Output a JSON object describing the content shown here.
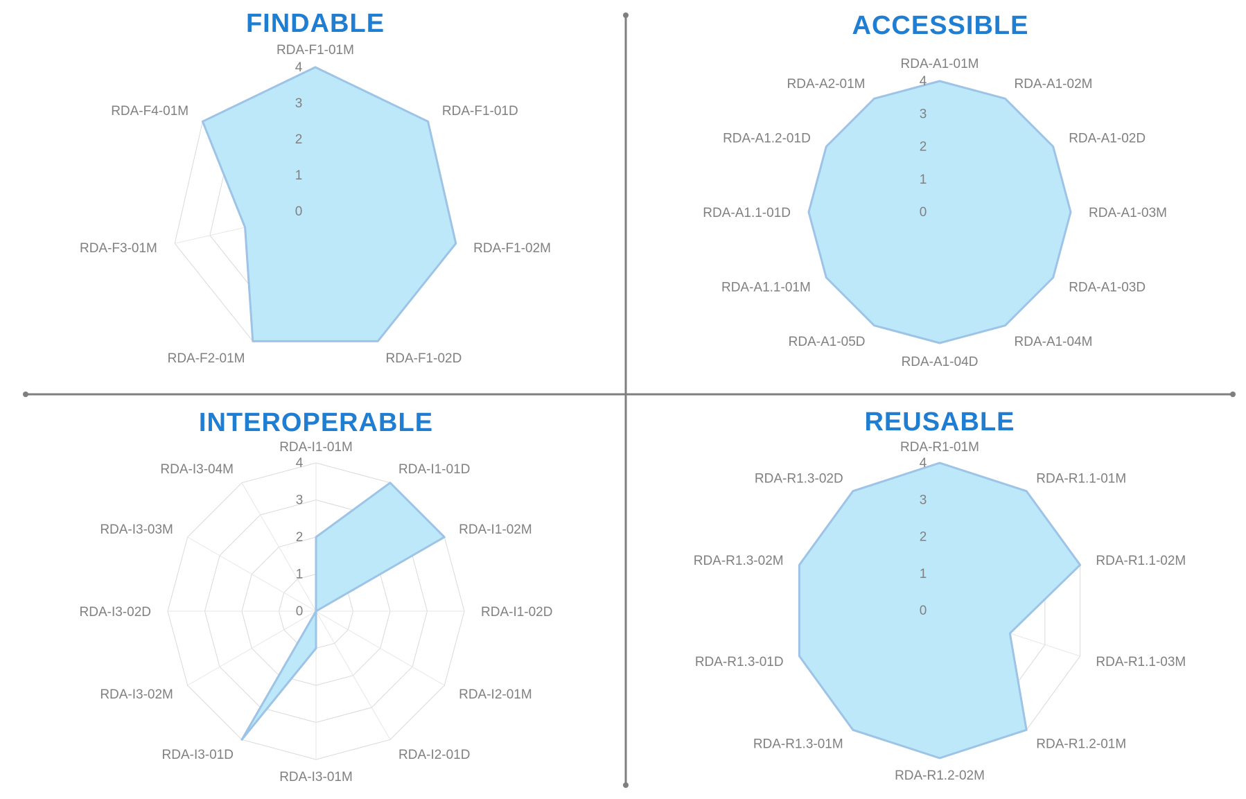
{
  "colors": {
    "title": "#1f7ed2",
    "fill": "#bde8f9",
    "stroke": "#9dc3e6",
    "label": "#808080",
    "grid": "#d9d9d9",
    "divider": "#7f7f7f"
  },
  "chart_data": [
    {
      "type": "radar",
      "title": "FINDABLE",
      "rlim": [
        0,
        4
      ],
      "ticks": [
        "0",
        "1",
        "2",
        "3",
        "4"
      ],
      "categories": [
        "RDA-F1-01M",
        "RDA-F1-01D",
        "RDA-F1-02M",
        "RDA-F1-02D",
        "RDA-F2-01M",
        "RDA-F3-01M",
        "RDA-F4-01M"
      ],
      "values": [
        4,
        4,
        4,
        4,
        4,
        2,
        4
      ]
    },
    {
      "type": "radar",
      "title": "ACCESSIBLE",
      "rlim": [
        0,
        4
      ],
      "ticks": [
        "0",
        "1",
        "2",
        "3",
        "4"
      ],
      "categories": [
        "RDA-A1-01M",
        "RDA-A1-02M",
        "RDA-A1-02D",
        "RDA-A1-03M",
        "RDA-A1-03D",
        "RDA-A1-04M",
        "RDA-A1-04D",
        "RDA-A1-05D",
        "RDA-A1.1-01M",
        "RDA-A1.1-01D",
        "RDA-A1.2-01D",
        "RDA-A2-01M"
      ],
      "values": [
        4,
        4,
        4,
        4,
        4,
        4,
        4,
        4,
        4,
        4,
        4,
        4
      ]
    },
    {
      "type": "radar",
      "title": "INTEROPERABLE",
      "rlim": [
        0,
        4
      ],
      "ticks": [
        "0",
        "1",
        "2",
        "3",
        "4"
      ],
      "categories": [
        "RDA-I1-01M",
        "RDA-I1-01D",
        "RDA-I1-02M",
        "RDA-I1-02D",
        "RDA-I2-01M",
        "RDA-I2-01D",
        "RDA-I3-01M",
        "RDA-I3-01D",
        "RDA-I3-02M",
        "RDA-I3-02D",
        "RDA-I3-03M",
        "RDA-I3-04M"
      ],
      "values": [
        2,
        4,
        4,
        0,
        0,
        0,
        1,
        4,
        0,
        0,
        0,
        0
      ]
    },
    {
      "type": "radar",
      "title": "REUSABLE",
      "rlim": [
        0,
        4
      ],
      "ticks": [
        "0",
        "1",
        "2",
        "3",
        "4"
      ],
      "categories": [
        "RDA-R1-01M",
        "RDA-R1.1-01M",
        "RDA-R1.1-02M",
        "RDA-R1.1-03M",
        "RDA-R1.2-01M",
        "RDA-R1.2-02M",
        "RDA-R1.3-01M",
        "RDA-R1.3-01D",
        "RDA-R1.3-02M",
        "RDA-R1.3-02D"
      ],
      "values": [
        4,
        4,
        4,
        2,
        4,
        4,
        4,
        4,
        4,
        4
      ]
    }
  ]
}
